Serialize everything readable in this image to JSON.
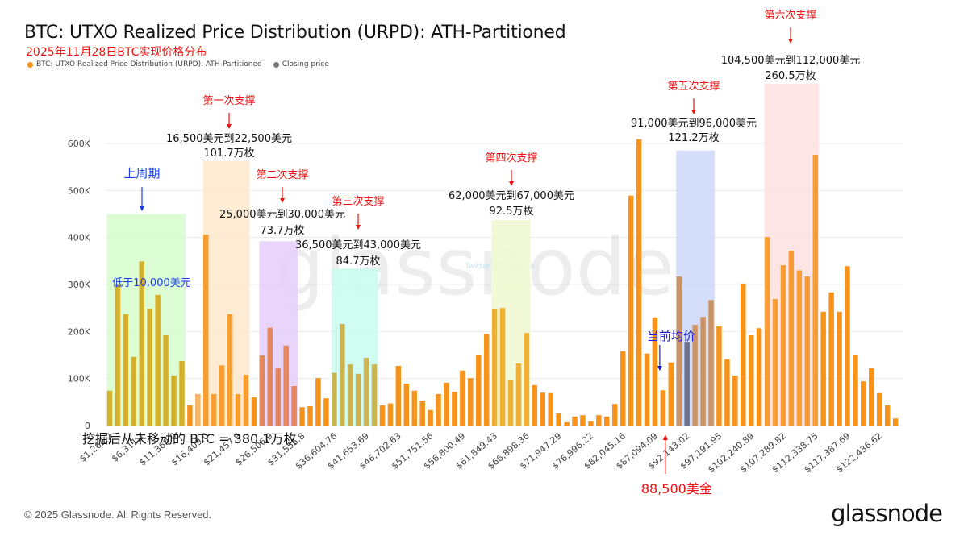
{
  "header": {
    "title": "BTC: UTXO Realized Price Distribution (URPD): ATH-Partitioned",
    "subtitle": "2025年11月28日BTC实现价格分布",
    "legend": [
      {
        "label": "BTC: UTXO Realized Price Distribution (URPD): ATH-Partitioned",
        "color": "#f7931a"
      },
      {
        "label": "Closing price",
        "color": "#777777"
      }
    ]
  },
  "footer": {
    "copyright": "© 2025 Glassnode. All Rights Reserved.",
    "logo": "glassnode"
  },
  "watermark": {
    "brand": "glassnode",
    "twitter": "Twitter @Phyrex_Ni"
  },
  "chart_data": {
    "type": "bar",
    "title": "BTC: UTXO Realized Price Distribution (URPD): ATH-Partitioned",
    "xlabel": "",
    "ylabel": "",
    "ylim": [
      0,
      620000
    ],
    "yticks": [
      0,
      100000,
      200000,
      300000,
      400000,
      500000,
      600000
    ],
    "ytick_labels": [
      "0",
      "100K",
      "200K",
      "300K",
      "400K",
      "500K",
      "600K"
    ],
    "grid": true,
    "bin_start": 1262.2,
    "bin_width": 1262.2,
    "xtick_every": 4,
    "xtick_labels": [
      "$1,262.2",
      "$6,311.1",
      "$11,360.0",
      "$16,409.0",
      "$21,457.9",
      "$26,506.9",
      "$31,555.8",
      "$36,604.76",
      "$41,653.69",
      "$46,702.63",
      "$51,751.56",
      "$56,800.49",
      "$61,849.43",
      "$66,898.36",
      "$71,947.29",
      "$76,996.22",
      "$82,045.16",
      "$87,094.09",
      "$92,143.02",
      "$97,191.95",
      "$102,240.89",
      "$107,289.82",
      "$112,338.75",
      "$117,387.69",
      "$122,436.62"
    ],
    "values": [
      74000,
      300000,
      237000,
      146000,
      349000,
      248000,
      278000,
      192000,
      106000,
      137000,
      43000,
      67000,
      406000,
      67000,
      128000,
      237000,
      67000,
      108000,
      60000,
      149000,
      208000,
      123000,
      170000,
      84000,
      39000,
      41000,
      101000,
      58000,
      112000,
      216000,
      130000,
      110000,
      144000,
      130000,
      43000,
      47000,
      127000,
      89000,
      74000,
      53000,
      33000,
      67000,
      91000,
      72000,
      117000,
      101000,
      151000,
      195000,
      247000,
      250000,
      96000,
      132000,
      197000,
      86000,
      70000,
      69000,
      26000,
      7000,
      19000,
      22000,
      9000,
      22000,
      19000,
      46000,
      158000,
      489000,
      609000,
      153000,
      230000,
      75000,
      134000,
      317000,
      178000,
      214000,
      231000,
      267000,
      211000,
      141000,
      106000,
      302000,
      192000,
      207000,
      401000,
      269000,
      341000,
      372000,
      330000,
      317000,
      576000,
      242000,
      283000,
      242000,
      339000,
      151000,
      94000,
      122000,
      69000,
      43000,
      15000
    ],
    "highlight_bar_index": 72,
    "colors": {
      "bar": "#f7931a",
      "bar_light": "#f9b25f",
      "closing_price_bar": "#6b7290"
    },
    "zones": [
      {
        "name": "上周期",
        "range_label": "低于10,000美元",
        "label_color": "#1a3ee8",
        "fill": "#d6fccc",
        "first_bar": 0,
        "last_bar": 9,
        "top": 450000
      },
      {
        "name": "第一次支撑",
        "range_label": "16,500美元到22,500美元",
        "amount": "101.7万枚",
        "label_color": "#ee1111",
        "fill": "#fde8cc",
        "first_bar": 12,
        "last_bar": 17,
        "top": 563000
      },
      {
        "name": "第二次支撑",
        "range_label": "25,000美元到30,000美元",
        "amount": "73.7万枚",
        "label_color": "#ee1111",
        "fill": "#e5ccfa",
        "first_bar": 19,
        "last_bar": 23,
        "top": 392000
      },
      {
        "name": "第三次支撑",
        "range_label": "36,500美元到43,000美元",
        "amount": "84.7万枚",
        "label_color": "#ee1111",
        "fill": "#c9fbee",
        "first_bar": 28,
        "last_bar": 33,
        "top": 334000
      },
      {
        "name": "第四次支撑",
        "range_label": "62,000美元到67,000美元",
        "amount": "92.5万枚",
        "label_color": "#ee1111",
        "fill": "#eef8cf",
        "first_bar": 48,
        "last_bar": 52,
        "top": 437000
      },
      {
        "name": "第五次支撑",
        "range_label": "91,000美元到96,000美元",
        "amount": "121.2万枚",
        "label_color": "#ee1111",
        "fill": "#ccd7f8",
        "first_bar": 71,
        "last_bar": 75,
        "top": 585000
      },
      {
        "name": "第六次支撑",
        "range_label": "104,500美元到112,000美元",
        "amount": "260.5万枚",
        "label_color": "#ee1111",
        "fill": "#fde0e2",
        "first_bar": 82,
        "last_bar": 88,
        "top": 727000
      }
    ],
    "annotations": {
      "unmoved": "挖掘后从未移动的 BTC = 380.1万枚",
      "current_avg_label": "当前均价",
      "current_avg_bar": 69,
      "price_marker_label": "88,500美金",
      "price_marker_bar": 69.5
    }
  }
}
